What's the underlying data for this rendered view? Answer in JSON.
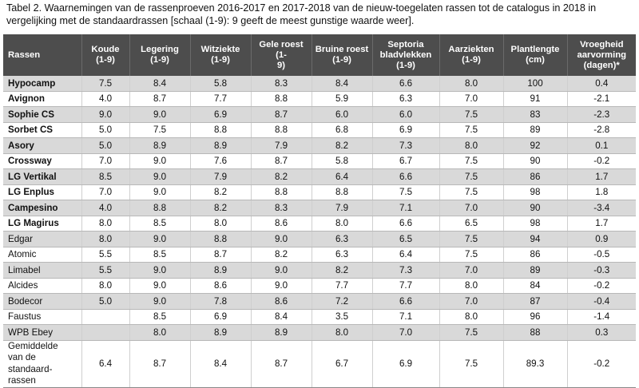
{
  "caption": {
    "line1": "Tabel 2. Waarnemingen van de rassenproeven 2016-2017 en 2017-2018 van de nieuw-toegelaten rassen tot de catalogus in 2018 in",
    "line2": "vergelijking met de standaardrassen [schaal (1-9): 9 geeft de meest gunstige waarde weer]."
  },
  "headers": [
    [
      "Rassen"
    ],
    [
      "Koude",
      "(1-9)"
    ],
    [
      "Legering",
      "(1-9)"
    ],
    [
      "Witziekte",
      "(1-9)"
    ],
    [
      "Gele roest (1-",
      "9)"
    ],
    [
      "Bruine roest",
      "(1-9)"
    ],
    [
      "Septoria",
      "bladvlekken",
      "(1-9)"
    ],
    [
      "Aarziekten",
      "(1-9)"
    ],
    [
      "Plantlengte",
      "(cm)"
    ],
    [
      "Vroegheid",
      "aarvorming",
      "(dagen)*"
    ]
  ],
  "rows": [
    [
      "Hypocamp",
      "7.5",
      "8.4",
      "5.8",
      "8.3",
      "8.4",
      "6.6",
      "8.0",
      "100",
      "0.4"
    ],
    [
      "Avignon",
      "4.0",
      "8.7",
      "7.7",
      "8.8",
      "5.9",
      "6.3",
      "7.0",
      "91",
      "-2.1"
    ],
    [
      "Sophie CS",
      "9.0",
      "9.0",
      "6.9",
      "8.7",
      "6.0",
      "6.0",
      "7.5",
      "83",
      "-2.3"
    ],
    [
      "Sorbet CS",
      "5.0",
      "7.5",
      "8.8",
      "8.8",
      "6.8",
      "6.9",
      "7.5",
      "89",
      "-2.8"
    ],
    [
      "Asory",
      "5.0",
      "8.9",
      "8.9",
      "7.9",
      "8.2",
      "7.3",
      "8.0",
      "92",
      "0.1"
    ],
    [
      "Crossway",
      "7.0",
      "9.0",
      "7.6",
      "8.7",
      "5.8",
      "6.7",
      "7.5",
      "90",
      "-0.2"
    ],
    [
      "LG Vertikal",
      "8.5",
      "9.0",
      "7.9",
      "8.2",
      "6.4",
      "6.6",
      "7.5",
      "86",
      "1.7"
    ],
    [
      "LG Enplus",
      "7.0",
      "9.0",
      "8.2",
      "8.8",
      "8.8",
      "7.5",
      "7.5",
      "98",
      "1.8"
    ],
    [
      "Campesino",
      "4.0",
      "8.8",
      "8.2",
      "8.3",
      "7.9",
      "7.1",
      "7.0",
      "90",
      "-3.4"
    ],
    [
      "LG Magirus",
      "8.0",
      "8.5",
      "8.0",
      "8.6",
      "8.0",
      "6.6",
      "6.5",
      "98",
      "1.7"
    ],
    [
      "Edgar",
      "8.0",
      "9.0",
      "8.8",
      "9.0",
      "6.3",
      "6.5",
      "7.5",
      "94",
      "0.9"
    ],
    [
      "Atomic",
      "5.5",
      "8.5",
      "8.7",
      "8.2",
      "6.3",
      "6.4",
      "7.5",
      "86",
      "-0.5"
    ],
    [
      "Limabel",
      "5.5",
      "9.0",
      "8.9",
      "9.0",
      "8.2",
      "7.3",
      "7.0",
      "89",
      "-0.3"
    ],
    [
      "Alcides",
      "8.0",
      "9.0",
      "8.6",
      "9.0",
      "7.7",
      "7.7",
      "8.0",
      "84",
      "-0.2"
    ],
    [
      "Bodecor",
      "5.0",
      "9.0",
      "7.8",
      "8.6",
      "7.2",
      "6.6",
      "7.0",
      "87",
      "-0.4"
    ],
    [
      "Faustus",
      "",
      "8.5",
      "6.9",
      "8.4",
      "3.5",
      "7.1",
      "8.0",
      "96",
      "-1.4"
    ],
    [
      "WPB Ebey",
      "",
      "8.0",
      "8.9",
      "8.9",
      "8.0",
      "7.0",
      "7.5",
      "88",
      "0.3"
    ]
  ],
  "average_row": {
    "label_lines": [
      "Gemiddelde",
      "van de",
      "standaard-",
      "rassen"
    ],
    "values": [
      "6.4",
      "8.7",
      "8.4",
      "8.7",
      "6.7",
      "6.9",
      "7.5",
      "89.3",
      "-0.2"
    ]
  }
}
